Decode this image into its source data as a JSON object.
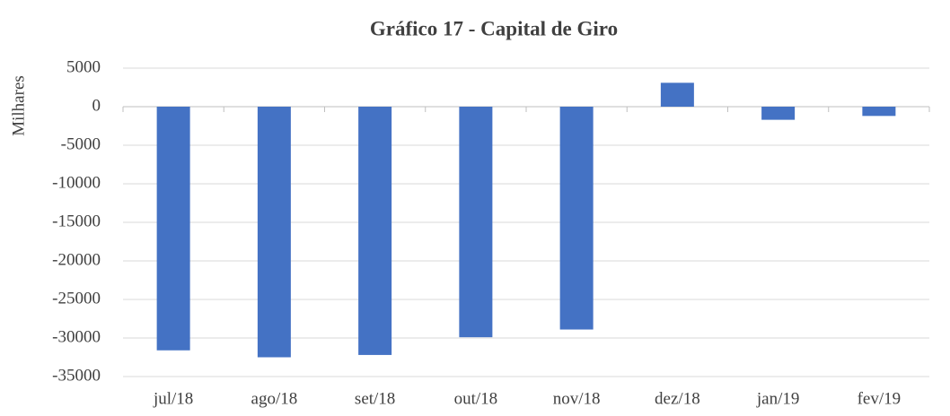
{
  "chart_data": {
    "type": "bar",
    "title": "Gráfico 17 - Capital de Giro",
    "y_label": "Milhares",
    "categories": [
      "jul/18",
      "ago/18",
      "set/18",
      "out/18",
      "nov/18",
      "dez/18",
      "jan/19",
      "fev/19"
    ],
    "values": [
      -31600,
      -32500,
      -32200,
      -29900,
      -28900,
      3100,
      -1700,
      -1200
    ],
    "color": "#4472c4",
    "ylim": [
      -35000,
      5000
    ],
    "yticks": [
      -35000,
      -30000,
      -25000,
      -20000,
      -15000,
      -10000,
      -5000,
      0,
      5000
    ],
    "grid": true
  }
}
